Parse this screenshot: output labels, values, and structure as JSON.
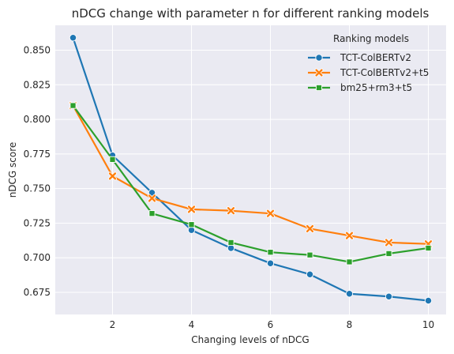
{
  "chart_data": {
    "type": "line",
    "title": "nDCG change with parameter n for different ranking models",
    "xlabel": "Changing levels of nDCG",
    "ylabel": "nDCG score",
    "x": [
      1,
      2,
      3,
      4,
      5,
      6,
      7,
      8,
      9,
      10
    ],
    "xlim": [
      0.55,
      10.45
    ],
    "ylim": [
      0.659,
      0.868
    ],
    "xticks": [
      2,
      4,
      6,
      8,
      10
    ],
    "yticks": [
      0.675,
      0.7,
      0.725,
      0.75,
      0.775,
      0.8,
      0.825,
      0.85
    ],
    "ytick_labels": [
      "0.675",
      "0.700",
      "0.725",
      "0.750",
      "0.775",
      "0.800",
      "0.825",
      "0.850"
    ],
    "grid": true,
    "legend": {
      "title": "Ranking models",
      "position": "top-right"
    },
    "series": [
      {
        "name": "TCT-ColBERTv2",
        "color": "#1f77b4",
        "marker": "circle",
        "values": [
          0.859,
          0.774,
          0.747,
          0.72,
          0.707,
          0.696,
          0.688,
          0.674,
          0.672,
          0.669
        ]
      },
      {
        "name": "TCT-ColBERTv2+t5",
        "color": "#ff7f0e",
        "marker": "x",
        "values": [
          0.81,
          0.759,
          0.743,
          0.735,
          0.734,
          0.732,
          0.721,
          0.716,
          0.711,
          0.71
        ]
      },
      {
        "name": "bm25+rm3+t5",
        "color": "#2ca02c",
        "marker": "square",
        "values": [
          0.81,
          0.771,
          0.732,
          0.724,
          0.711,
          0.704,
          0.702,
          0.697,
          0.703,
          0.707
        ]
      }
    ]
  }
}
